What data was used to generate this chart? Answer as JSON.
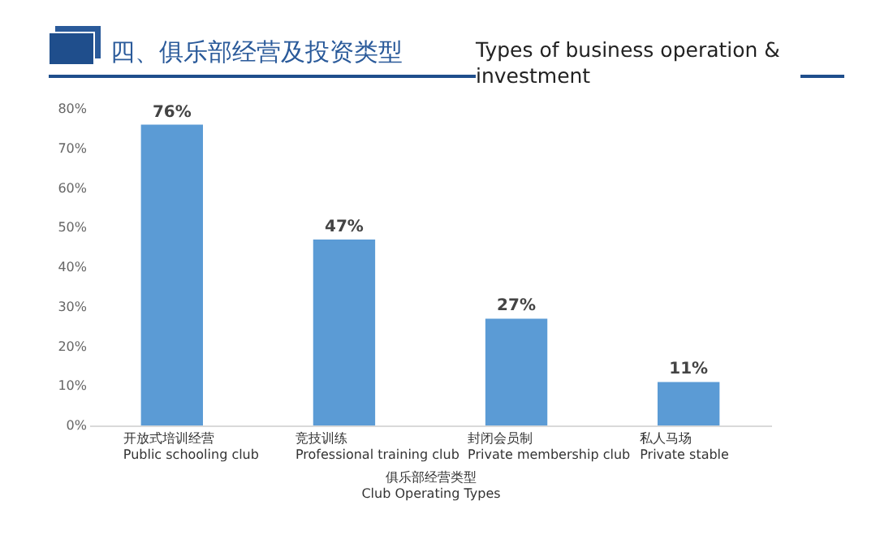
{
  "chart_data": {
    "type": "bar",
    "title": "四、俱乐部经营及投资类型",
    "subtitle": "Types of business operation & investment",
    "categories": [
      "开放式培训经营\nPublic schooling club",
      "竞技训练\nProfessional training club",
      "封闭会员制\nPrivate membership club",
      "私人马场\nPrivate stable"
    ],
    "values": [
      76,
      47,
      27,
      11
    ],
    "color": "#5b9bd5",
    "value_labels": [
      "76%",
      "47%",
      "27%",
      "11%"
    ],
    "xlabel": "俱乐部经营类型\nClub Operating Types",
    "ylim": [
      0,
      80
    ],
    "yticks": [
      {
        "value": 0,
        "label": "0%"
      },
      {
        "value": 10,
        "label": "10%"
      },
      {
        "value": 20,
        "label": "20%"
      },
      {
        "value": 30,
        "label": "30%"
      },
      {
        "value": 40,
        "label": "40%"
      },
      {
        "value": 50,
        "label": "50%"
      },
      {
        "value": 60,
        "label": "60%"
      },
      {
        "value": 70,
        "label": "70%"
      },
      {
        "value": 80,
        "label": "80%"
      }
    ],
    "grid": false
  }
}
